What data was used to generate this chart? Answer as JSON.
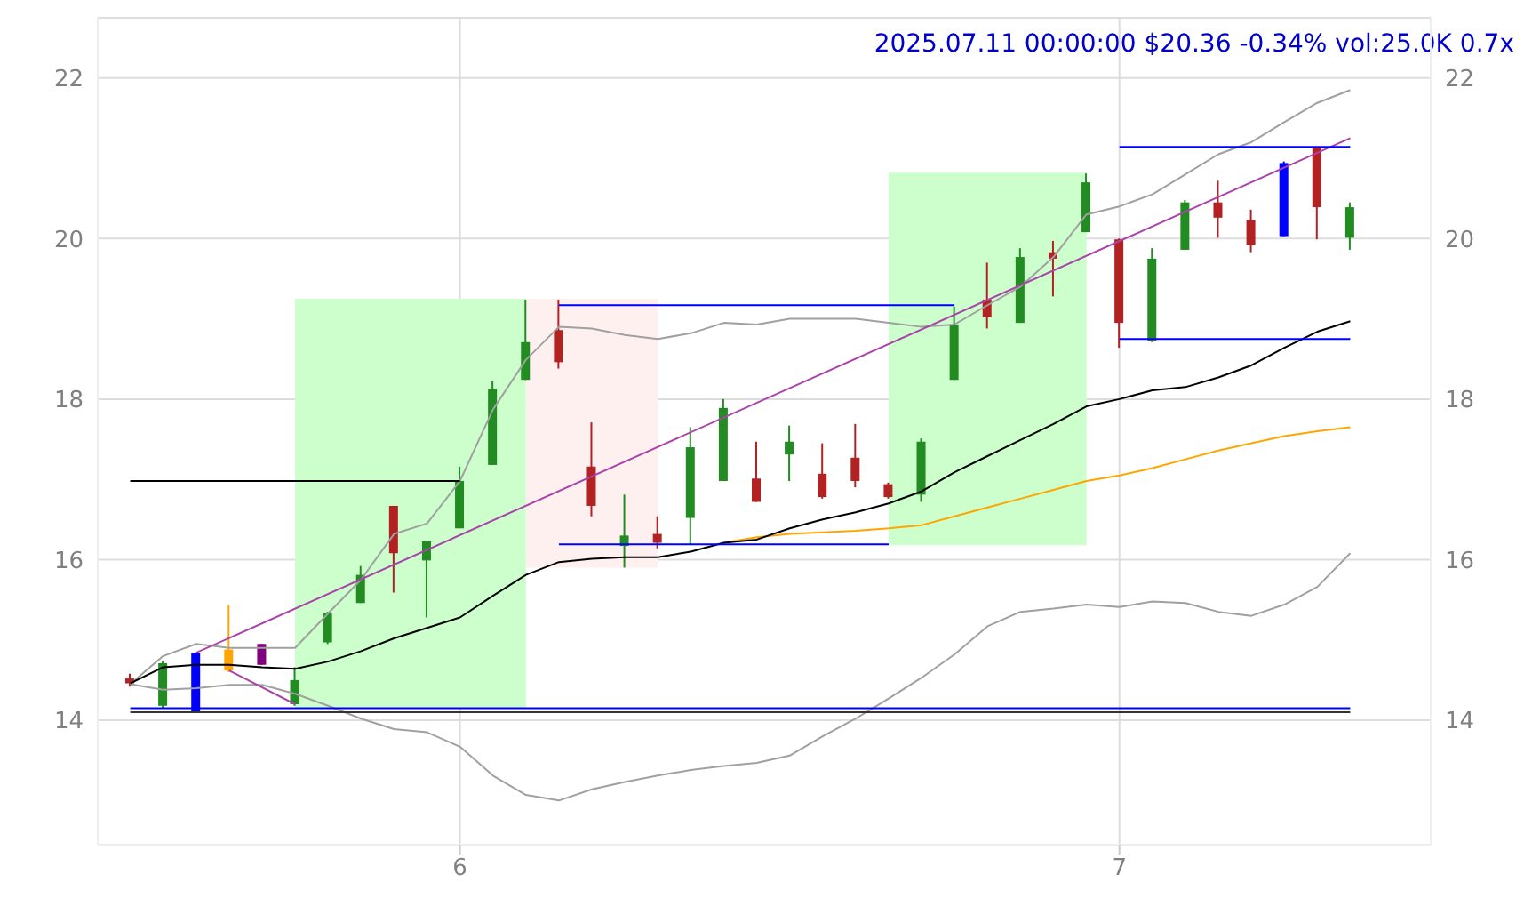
{
  "chart_data": {
    "type": "candlestick",
    "title": "2025.07.11 00:00:00 $20.36 -0.34% vol:25.0K 0.7x",
    "categories": [
      null,
      null,
      null,
      null,
      null,
      null,
      null,
      null,
      null,
      null,
      "6",
      null,
      null,
      null,
      null,
      null,
      null,
      null,
      null,
      null,
      null,
      null,
      null,
      null,
      null,
      null,
      null,
      null,
      null,
      null,
      "7",
      null,
      null,
      null,
      null,
      null,
      null,
      null
    ],
    "ohlc": [
      [
        14.52,
        14.58,
        14.42,
        14.46
      ],
      [
        14.18,
        14.74,
        14.15,
        14.71
      ],
      [
        14.1,
        14.84,
        14.1,
        14.84
      ],
      [
        14.88,
        15.44,
        14.6,
        14.62
      ],
      [
        14.95,
        14.95,
        14.69,
        14.69
      ],
      [
        14.2,
        14.66,
        14.18,
        14.5
      ],
      [
        14.97,
        15.35,
        14.95,
        15.33
      ],
      [
        15.46,
        15.92,
        15.46,
        15.81
      ],
      [
        16.67,
        16.67,
        15.59,
        16.08
      ],
      [
        15.99,
        16.23,
        15.28,
        16.23
      ],
      [
        16.39,
        17.16,
        16.39,
        16.98
      ],
      [
        17.18,
        18.22,
        17.18,
        18.13
      ],
      [
        18.24,
        19.24,
        18.24,
        18.71
      ],
      [
        18.86,
        19.24,
        18.38,
        18.46
      ],
      [
        17.16,
        17.71,
        16.54,
        16.67
      ],
      [
        16.17,
        16.81,
        15.9,
        16.3
      ],
      [
        16.32,
        16.54,
        16.14,
        16.21
      ],
      [
        16.52,
        17.65,
        16.19,
        17.4
      ],
      [
        16.98,
        18.0,
        16.98,
        17.89
      ],
      [
        17.01,
        17.47,
        16.72,
        16.72
      ],
      [
        17.31,
        17.67,
        16.98,
        17.47
      ],
      [
        17.07,
        17.45,
        16.76,
        16.78
      ],
      [
        17.27,
        17.69,
        16.9,
        16.98
      ],
      [
        16.94,
        16.96,
        16.76,
        16.78
      ],
      [
        16.81,
        17.51,
        16.72,
        17.47
      ],
      [
        18.24,
        19.15,
        18.24,
        18.93
      ],
      [
        19.24,
        19.7,
        18.88,
        19.02
      ],
      [
        18.95,
        19.88,
        18.95,
        19.77
      ],
      [
        19.83,
        19.97,
        19.28,
        19.75
      ],
      [
        20.08,
        20.81,
        20.08,
        20.7
      ],
      [
        19.99,
        20.0,
        18.64,
        18.95
      ],
      [
        18.73,
        19.88,
        18.71,
        19.75
      ],
      [
        19.86,
        20.48,
        19.86,
        20.45
      ],
      [
        20.45,
        20.72,
        20.01,
        20.26
      ],
      [
        20.23,
        20.36,
        19.83,
        19.92
      ],
      [
        20.03,
        20.96,
        20.03,
        20.94
      ],
      [
        21.14,
        21.14,
        19.99,
        20.39
      ],
      [
        20.01,
        20.45,
        19.86,
        20.39
      ]
    ],
    "colors": [
      "#b22222",
      "#228b22",
      "#0000ff",
      "#ffa500",
      "#800080",
      "#228b22",
      "#228b22",
      "#228b22",
      "#b22222",
      "#228b22",
      "#228b22",
      "#228b22",
      "#228b22",
      "#b22222",
      "#b22222",
      "#228b22",
      "#b22222",
      "#228b22",
      "#228b22",
      "#b22222",
      "#228b22",
      "#b22222",
      "#b22222",
      "#b22222",
      "#228b22",
      "#228b22",
      "#b22222",
      "#228b22",
      "#b22222",
      "#228b22",
      "#b22222",
      "#228b22",
      "#228b22",
      "#b22222",
      "#b22222",
      "#0000ff",
      "#b22222",
      "#228b22"
    ],
    "ylim": [
      12.45,
      22.75
    ],
    "yticks": [
      14,
      16,
      18,
      20,
      22
    ],
    "y2lim": [
      12.45,
      22.75
    ],
    "y2ticks": [
      14,
      16,
      18,
      20,
      22
    ],
    "grid": true,
    "series": [
      {
        "type": "area",
        "color": "#ccffcc",
        "values": [
          null,
          null,
          null,
          null,
          null,
          null,
          null,
          null,
          null,
          null,
          null,
          null,
          null,
          null,
          null,
          null,
          null,
          null,
          null,
          null,
          null,
          null,
          null,
          null,
          null,
          null,
          null,
          null,
          null,
          null,
          null,
          null,
          null,
          null,
          null,
          null,
          null,
          null
        ],
        "upper": [
          null,
          null,
          null,
          null,
          null,
          19.25,
          19.25,
          19.25,
          19.25,
          19.25,
          19.25,
          19.25,
          19.25,
          null,
          null,
          null,
          null,
          null,
          null,
          null,
          null,
          null,
          null,
          null,
          null,
          null,
          null,
          null,
          null,
          null,
          null,
          null,
          null,
          null,
          null,
          null,
          null,
          null
        ],
        "lower": [
          null,
          null,
          null,
          null,
          null,
          14.15,
          14.15,
          14.15,
          14.15,
          14.15,
          14.15,
          14.15,
          14.15,
          null,
          null,
          null,
          null,
          null,
          null,
          null,
          null,
          null,
          null,
          null,
          null,
          null,
          null,
          null,
          null,
          null,
          null,
          null,
          null,
          null,
          null,
          null,
          null,
          null
        ]
      },
      {
        "type": "area",
        "color": "#fff0f0",
        "values": [
          null,
          null,
          null,
          null,
          null,
          null,
          null,
          null,
          null,
          null,
          null,
          null,
          null,
          null,
          null,
          null,
          null,
          null,
          null,
          null,
          null,
          null,
          null,
          null,
          null,
          null,
          null,
          null,
          null,
          null,
          null,
          null,
          null,
          null,
          null,
          null,
          null,
          null
        ],
        "upper": [
          null,
          null,
          null,
          null,
          null,
          null,
          null,
          null,
          null,
          null,
          null,
          null,
          19.25,
          19.25,
          19.25,
          19.25,
          19.25,
          null,
          null,
          null,
          null,
          null,
          null,
          null,
          null,
          null,
          null,
          null,
          null,
          null,
          null,
          null,
          null,
          null,
          null,
          null,
          null,
          null
        ],
        "lower": [
          null,
          null,
          null,
          null,
          null,
          null,
          null,
          null,
          null,
          null,
          null,
          null,
          15.9,
          15.9,
          15.9,
          15.9,
          15.9,
          null,
          null,
          null,
          null,
          null,
          null,
          null,
          null,
          null,
          null,
          null,
          null,
          null,
          null,
          null,
          null,
          null,
          null,
          null,
          null,
          null
        ]
      },
      {
        "type": "area",
        "color": "#ccffcc",
        "values": [
          null,
          null,
          null,
          null,
          null,
          null,
          null,
          null,
          null,
          null,
          null,
          null,
          null,
          null,
          null,
          null,
          null,
          null,
          null,
          null,
          null,
          null,
          null,
          null,
          null,
          null,
          null,
          null,
          null,
          null,
          null,
          null,
          null,
          null,
          null,
          null,
          null,
          null
        ],
        "upper": [
          null,
          null,
          null,
          null,
          null,
          null,
          null,
          null,
          null,
          null,
          null,
          null,
          null,
          null,
          null,
          null,
          null,
          null,
          null,
          null,
          null,
          null,
          null,
          20.82,
          20.82,
          20.82,
          20.82,
          20.82,
          20.82,
          20.82,
          null,
          null,
          null,
          null,
          null,
          null,
          null,
          null
        ],
        "lower": [
          null,
          null,
          null,
          null,
          null,
          null,
          null,
          null,
          null,
          null,
          null,
          null,
          null,
          null,
          null,
          null,
          null,
          null,
          null,
          null,
          null,
          null,
          null,
          16.18,
          16.18,
          16.18,
          16.18,
          16.18,
          16.18,
          16.18,
          null,
          null,
          null,
          null,
          null,
          null,
          null,
          null
        ]
      },
      {
        "type": "line",
        "color": "#a0a0a0",
        "values": [
          14.45,
          14.8,
          14.95,
          14.9,
          14.9,
          14.9,
          15.33,
          15.75,
          16.32,
          16.45,
          16.98,
          17.87,
          18.49,
          18.9,
          18.88,
          18.8,
          18.75,
          18.82,
          18.95,
          18.93,
          19.0,
          19.0,
          19.0,
          18.95,
          18.9,
          18.93,
          19.17,
          19.4,
          19.77,
          20.3,
          20.4,
          20.55,
          20.8,
          21.05,
          21.2,
          21.45,
          21.69,
          21.85
        ]
      },
      {
        "type": "line",
        "color": "#a0a0a0",
        "values": [
          14.45,
          14.38,
          14.4,
          14.44,
          14.44,
          14.33,
          14.18,
          14.02,
          13.89,
          13.85,
          13.67,
          13.31,
          13.07,
          13.0,
          13.14,
          13.23,
          13.31,
          13.38,
          13.43,
          13.47,
          13.56,
          13.8,
          14.02,
          14.27,
          14.53,
          14.82,
          15.17,
          15.35,
          15.39,
          15.44,
          15.41,
          15.48,
          15.46,
          15.35,
          15.3,
          15.44,
          15.66,
          16.08
        ]
      },
      {
        "type": "line",
        "color": "#ffa500",
        "values": [
          null,
          null,
          null,
          null,
          null,
          null,
          null,
          null,
          null,
          null,
          null,
          null,
          null,
          null,
          null,
          null,
          null,
          null,
          16.21,
          16.28,
          16.32,
          16.34,
          16.36,
          16.39,
          16.43,
          16.54,
          16.65,
          16.76,
          16.87,
          16.98,
          17.05,
          17.14,
          17.25,
          17.36,
          17.45,
          17.54,
          17.6,
          17.65
        ]
      },
      {
        "type": "line",
        "color": "#000000",
        "values": [
          14.46,
          14.66,
          14.69,
          14.69,
          14.66,
          14.64,
          14.73,
          14.86,
          15.02,
          15.15,
          15.28,
          15.55,
          15.81,
          15.97,
          16.01,
          16.03,
          16.03,
          16.1,
          16.21,
          16.25,
          16.39,
          16.5,
          16.59,
          16.7,
          16.85,
          17.09,
          17.29,
          17.49,
          17.69,
          17.91,
          18.0,
          18.11,
          18.15,
          18.27,
          18.42,
          18.64,
          18.84,
          18.97
        ]
      },
      {
        "type": "line",
        "color": "#aa44aa",
        "values": [
          null,
          null,
          14.84,
          null,
          null,
          null,
          null,
          null,
          null,
          null,
          null,
          null,
          null,
          null,
          null,
          null,
          null,
          null,
          null,
          null,
          null,
          null,
          null,
          null,
          null,
          null,
          null,
          null,
          null,
          null,
          null,
          null,
          null,
          null,
          null,
          null,
          null,
          21.25
        ]
      },
      {
        "type": "line",
        "color": "#aa44aa",
        "values": [
          null,
          null,
          null,
          14.62,
          null,
          14.2,
          null,
          null,
          null,
          null,
          null,
          null,
          null,
          null,
          null,
          null,
          null,
          null,
          null,
          null,
          null,
          null,
          null,
          null,
          null,
          null,
          null,
          null,
          null,
          null,
          null,
          null,
          null,
          null,
          null,
          null,
          null,
          null
        ]
      },
      {
        "type": "line",
        "color": "#000000",
        "values": [
          16.98,
          16.98,
          16.98,
          16.98,
          16.98,
          16.98,
          16.98,
          16.98,
          16.98,
          16.98,
          16.98,
          null,
          null,
          null,
          null,
          null,
          null,
          null,
          null,
          null,
          null,
          null,
          null,
          null,
          null,
          null,
          null,
          null,
          null,
          null,
          null,
          null,
          null,
          null,
          null,
          null,
          null,
          null
        ]
      },
      {
        "type": "line",
        "color": "#0000ff",
        "values": [
          null,
          null,
          null,
          null,
          null,
          null,
          null,
          null,
          null,
          null,
          null,
          null,
          null,
          19.17,
          19.17,
          19.17,
          19.17,
          19.17,
          19.17,
          19.17,
          19.17,
          19.17,
          19.17,
          19.17,
          19.17,
          19.17,
          null,
          null,
          null,
          null,
          null,
          null,
          null,
          null,
          null,
          null,
          null,
          null
        ]
      },
      {
        "type": "line",
        "color": "#0000ff",
        "values": [
          null,
          null,
          null,
          null,
          null,
          null,
          null,
          null,
          null,
          null,
          null,
          null,
          null,
          16.19,
          16.19,
          16.19,
          16.19,
          16.19,
          16.19,
          16.19,
          16.19,
          16.19,
          16.19,
          16.19,
          null,
          null,
          null,
          null,
          null,
          null,
          null,
          null,
          null,
          null,
          null,
          null,
          null,
          null
        ]
      },
      {
        "type": "line",
        "color": "#0000ff",
        "values": [
          null,
          null,
          null,
          null,
          null,
          null,
          null,
          null,
          null,
          null,
          null,
          null,
          null,
          null,
          null,
          null,
          null,
          null,
          null,
          null,
          null,
          null,
          null,
          null,
          null,
          null,
          null,
          null,
          null,
          null,
          21.14,
          21.14,
          21.14,
          21.14,
          21.14,
          21.14,
          21.14,
          21.14
        ]
      },
      {
        "type": "line",
        "color": "#0000ff",
        "values": [
          null,
          null,
          null,
          null,
          null,
          null,
          null,
          null,
          null,
          null,
          null,
          null,
          null,
          null,
          null,
          null,
          null,
          null,
          null,
          null,
          null,
          null,
          null,
          null,
          null,
          null,
          null,
          null,
          null,
          null,
          18.75,
          18.75,
          18.75,
          18.75,
          18.75,
          18.75,
          18.75,
          18.75
        ]
      },
      {
        "type": "line",
        "color": "#0000ff",
        "values": [
          14.15,
          14.15,
          14.15,
          14.15,
          14.15,
          14.15,
          14.15,
          14.15,
          14.15,
          14.15,
          14.15,
          14.15,
          14.15,
          14.15,
          14.15,
          14.15,
          14.15,
          14.15,
          14.15,
          14.15,
          14.15,
          14.15,
          14.15,
          14.15,
          14.15,
          14.15,
          14.15,
          14.15,
          14.15,
          14.15,
          14.15,
          14.15,
          14.15,
          14.15,
          14.15,
          14.15,
          14.15,
          14.15
        ]
      },
      {
        "type": "line",
        "color": "#333333",
        "values": [
          14.1,
          14.1,
          14.1,
          14.1,
          14.1,
          14.1,
          14.1,
          14.1,
          14.1,
          14.1,
          14.1,
          14.1,
          14.1,
          14.1,
          14.1,
          14.1,
          14.1,
          14.1,
          14.1,
          14.1,
          14.1,
          14.1,
          14.1,
          14.1,
          14.1,
          14.1,
          14.1,
          14.1,
          14.1,
          14.1,
          14.1,
          14.1,
          14.1,
          14.1,
          14.1,
          14.1,
          14.1,
          14.1
        ]
      }
    ]
  }
}
